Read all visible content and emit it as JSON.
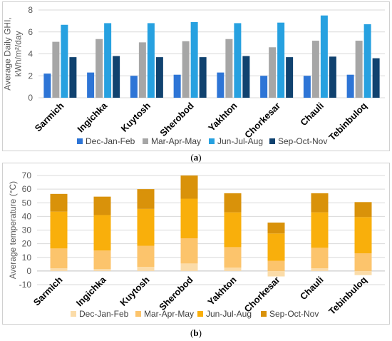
{
  "captions": {
    "a": "a",
    "b": "b"
  },
  "colors": {
    "a": [
      "#2e75d6",
      "#a6a6a6",
      "#27a1e0",
      "#10426f"
    ],
    "b": [
      "#fbdca9",
      "#fcc46c",
      "#f9af0b",
      "#d9920a"
    ]
  },
  "chart_data": [
    {
      "type": "bar",
      "panel": "a",
      "categories": [
        "Sarmich",
        "Ingichka",
        "Kuytosh",
        "Sherobod",
        "Yakhton",
        "Chorkesar",
        "Chauli",
        "Tebinbuloq"
      ],
      "series": [
        {
          "name": "Dec-Jan-Feb",
          "values": [
            2.2,
            2.3,
            2.0,
            2.1,
            2.3,
            2.0,
            2.0,
            2.1
          ]
        },
        {
          "name": "Mar-Apr-May",
          "values": [
            5.1,
            5.35,
            5.05,
            5.15,
            5.35,
            4.6,
            5.2,
            5.2
          ]
        },
        {
          "name": "Jun-Jul-Aug",
          "values": [
            6.65,
            6.8,
            6.8,
            6.9,
            6.8,
            6.85,
            7.5,
            6.7
          ]
        },
        {
          "name": "Sep-Oct-Nov",
          "values": [
            3.7,
            3.8,
            3.7,
            3.7,
            3.8,
            3.7,
            3.75,
            3.6
          ]
        }
      ],
      "ylabel": "Average Daily GHI, kWh/m²/day",
      "ylabel_lines": [
        "Average Daily GHI,",
        "kWh/m²/day"
      ],
      "ylim": [
        0,
        8
      ],
      "yticks": [
        "0",
        "2",
        "4",
        "6",
        "8"
      ],
      "grid": true,
      "legend": "bottom"
    },
    {
      "type": "bar",
      "stacked": true,
      "panel": "b",
      "categories": [
        "Sarmich",
        "Ingichka",
        "Kuytosh",
        "Sherobod",
        "Yakhton",
        "Chorkesar",
        "Chauli",
        "Tebinbuloq"
      ],
      "series": [
        {
          "name": "Dec-Jan-Feb",
          "values": [
            2,
            1.5,
            3,
            5.5,
            2.5,
            -4,
            2,
            -3
          ]
        },
        {
          "name": "Mar-Apr-May",
          "values": [
            14.5,
            13.5,
            15.5,
            18.5,
            15,
            7.5,
            15,
            13
          ]
        },
        {
          "name": "Jun-Jul-Aug",
          "values": [
            27,
            26,
            27,
            29,
            25.5,
            20,
            26,
            26.5
          ]
        },
        {
          "name": "Sep-Oct-Nov",
          "values": [
            13,
            13.5,
            14.5,
            17,
            14,
            8,
            14,
            11
          ]
        }
      ],
      "ylabel": "Average temperature (°C)",
      "ylim": [
        -10,
        70
      ],
      "yticks": [
        "-10",
        "0",
        "10",
        "20",
        "30",
        "40",
        "50",
        "60",
        "70"
      ],
      "grid": true,
      "legend": "bottom"
    }
  ]
}
